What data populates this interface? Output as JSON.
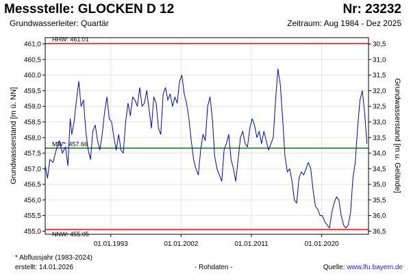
{
  "header": {
    "station_title": "Messstelle: GLOCKEN D 12",
    "station_number": "Nr: 23232",
    "aquifer": "Grundwasserleiter: Quartär",
    "period": "Zeitraum: Aug 1984 - Dez 2025"
  },
  "footer": {
    "footnote": "* Abflussjahr (1983-2024)",
    "created": "erstellt:  14.01.2026",
    "raw_data": "- Rohdaten -",
    "source_label": "Quelle: ",
    "source_url": "www.lfu.bayern.de"
  },
  "chart_data": {
    "type": "line",
    "ylabel_left": "Grundwasserstand [m ü. NN]",
    "ylabel_right": "Grundwasserstand [m u. Gelände]",
    "ylim": [
      454.9,
      461.2
    ],
    "xlim": [
      1984.6,
      2026.0
    ],
    "yticks_left": [
      "461,0",
      "460,5",
      "460,0",
      "459,5",
      "459,0",
      "458,5",
      "458,0",
      "457,5",
      "457,0",
      "456,5",
      "456,0",
      "455,5",
      "455,0"
    ],
    "yticks_right": [
      "30,5",
      "31,0",
      "31,5",
      "32,0",
      "32,5",
      "33,0",
      "33,5",
      "34,0",
      "34,5",
      "35,0",
      "35,5",
      "36,0",
      "36,5"
    ],
    "xticks": [
      {
        "label": "01.01.1993",
        "value": 1993.0
      },
      {
        "label": "01.01.2002",
        "value": 2002.0
      },
      {
        "label": "01.01.2011",
        "value": 2011.0
      },
      {
        "label": "01.01.2020",
        "value": 2020.0
      }
    ],
    "reference_lines": [
      {
        "label": "HHW: 461.01",
        "value": 461.01,
        "color": "#ff0000"
      },
      {
        "label": "MW*: 457.66",
        "value": 457.66,
        "color": "#008000"
      },
      {
        "label": "NNW: 455.05",
        "value": 455.05,
        "color": "#ff0000"
      }
    ],
    "series": [
      {
        "color": "#0000b4",
        "x": [
          1984.6,
          1984.9,
          1985.2,
          1985.6,
          1986.0,
          1986.4,
          1986.8,
          1987.2,
          1987.5,
          1987.8,
          1988.0,
          1988.3,
          1988.6,
          1988.9,
          1989.2,
          1989.5,
          1989.8,
          1990.1,
          1990.4,
          1990.7,
          1991.0,
          1991.3,
          1991.6,
          1991.9,
          1992.2,
          1992.5,
          1992.8,
          1993.1,
          1993.4,
          1993.7,
          1994.0,
          1994.3,
          1994.6,
          1994.9,
          1995.2,
          1995.5,
          1995.8,
          1996.1,
          1996.4,
          1996.7,
          1997.0,
          1997.3,
          1997.6,
          1997.9,
          1998.2,
          1998.5,
          1998.8,
          1999.1,
          1999.4,
          1999.7,
          2000.0,
          2000.3,
          2000.6,
          2000.9,
          2001.2,
          2001.5,
          2001.8,
          2002.1,
          2002.4,
          2002.7,
          2003.0,
          2003.3,
          2003.6,
          2003.9,
          2004.2,
          2004.5,
          2004.8,
          2005.1,
          2005.4,
          2005.7,
          2006.0,
          2006.3,
          2006.6,
          2006.9,
          2007.2,
          2007.5,
          2007.8,
          2008.1,
          2008.4,
          2008.7,
          2009.0,
          2009.3,
          2009.6,
          2009.9,
          2010.2,
          2010.5,
          2010.8,
          2011.1,
          2011.4,
          2011.7,
          2012.0,
          2012.3,
          2012.6,
          2012.9,
          2013.2,
          2013.5,
          2013.8,
          2014.1,
          2014.4,
          2014.7,
          2015.0,
          2015.3,
          2015.6,
          2015.9,
          2016.2,
          2016.5,
          2016.8,
          2017.1,
          2017.4,
          2017.7,
          2018.0,
          2018.3,
          2018.6,
          2018.9,
          2019.2,
          2019.5,
          2019.8,
          2020.1,
          2020.4,
          2020.7,
          2021.0,
          2021.3,
          2021.6,
          2021.9,
          2022.2,
          2022.5,
          2022.8,
          2023.1,
          2023.4,
          2023.7,
          2024.0,
          2024.3,
          2024.6,
          2024.9,
          2025.2,
          2025.5,
          2025.8
        ],
        "y": [
          457.1,
          456.7,
          457.3,
          457.2,
          457.6,
          457.9,
          457.5,
          457.7,
          457.1,
          458.6,
          458.1,
          458.5,
          459.2,
          459.8,
          459.0,
          459.2,
          458.2,
          457.6,
          457.3,
          458.2,
          458.4,
          457.9,
          457.6,
          458.1,
          458.8,
          459.3,
          458.6,
          458.5,
          458.0,
          457.6,
          458.1,
          457.6,
          457.5,
          458.5,
          459.1,
          458.7,
          459.3,
          459.2,
          459.0,
          459.6,
          459.0,
          459.1,
          459.5,
          458.9,
          458.3,
          459.3,
          459.1,
          458.3,
          458.1,
          459.4,
          459.6,
          459.2,
          459.4,
          459.0,
          459.3,
          459.1,
          459.8,
          460.0,
          459.4,
          459.1,
          458.6,
          457.9,
          457.3,
          457.0,
          456.8,
          457.6,
          458.1,
          457.9,
          459.0,
          459.3,
          458.6,
          457.4,
          457.0,
          456.8,
          456.6,
          457.6,
          457.8,
          458.1,
          457.3,
          457.0,
          456.6,
          457.3,
          458.0,
          458.2,
          457.8,
          457.7,
          458.3,
          458.6,
          458.4,
          458.0,
          458.2,
          457.8,
          458.2,
          457.9,
          457.6,
          457.8,
          458.0,
          459.2,
          460.2,
          459.7,
          458.6,
          457.4,
          456.9,
          457.0,
          456.6,
          456.0,
          455.9,
          456.7,
          456.9,
          456.8,
          457.0,
          457.2,
          457.0,
          456.3,
          455.8,
          455.7,
          455.5,
          455.5,
          455.3,
          455.2,
          455.1,
          455.6,
          455.9,
          456.1,
          456.0,
          455.5,
          455.2,
          455.1,
          455.2,
          455.6,
          456.7,
          457.2,
          458.3,
          459.2,
          459.5,
          458.8,
          457.8
        ]
      }
    ]
  }
}
